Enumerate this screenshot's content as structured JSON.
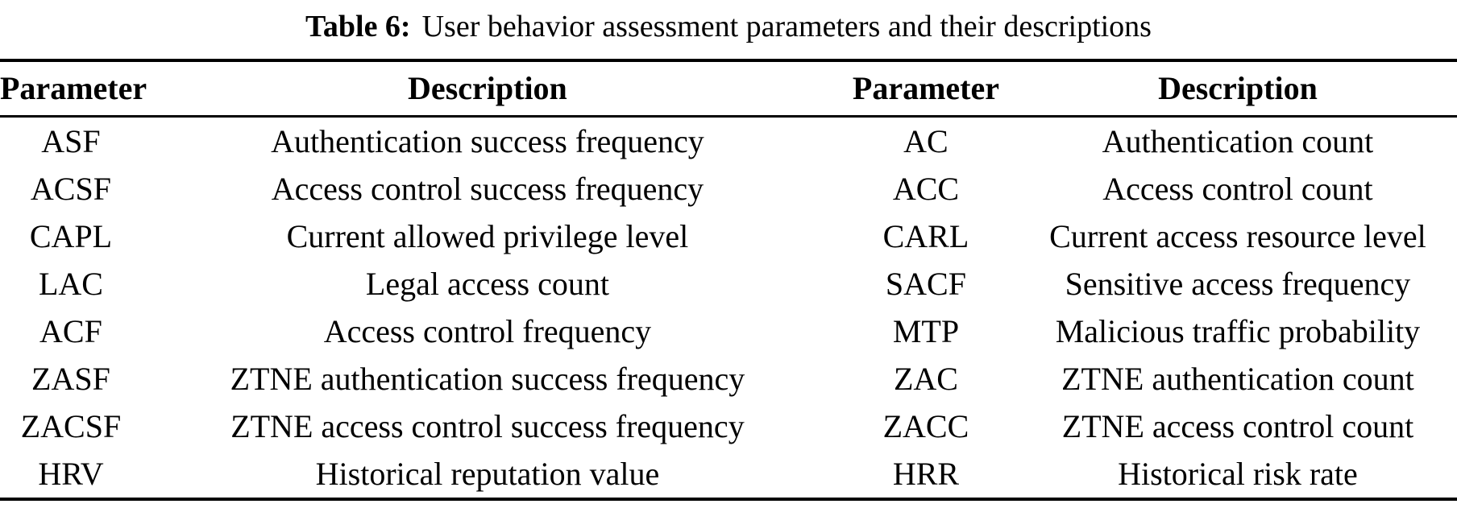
{
  "caption": {
    "label": "Table 6:",
    "text": "User behavior assessment parameters and their descriptions"
  },
  "table": {
    "headers": [
      "Parameter",
      "Description",
      "Parameter",
      "Description"
    ],
    "rows": [
      [
        "ASF",
        "Authentication success frequency",
        "AC",
        "Authentication count"
      ],
      [
        "ACSF",
        "Access control success frequency",
        "ACC",
        "Access control count"
      ],
      [
        "CAPL",
        "Current allowed privilege level",
        "CARL",
        "Current access resource level"
      ],
      [
        "LAC",
        "Legal access count",
        "SACF",
        "Sensitive access frequency"
      ],
      [
        "ACF",
        "Access control frequency",
        "MTP",
        "Malicious traffic probability"
      ],
      [
        "ZASF",
        "ZTNE authentication success frequency",
        "ZAC",
        "ZTNE authentication count"
      ],
      [
        "ZACSF",
        "ZTNE access control success frequency",
        "ZACC",
        "ZTNE access control count"
      ],
      [
        "HRV",
        "Historical reputation value",
        "HRR",
        "Historical risk rate"
      ]
    ]
  }
}
